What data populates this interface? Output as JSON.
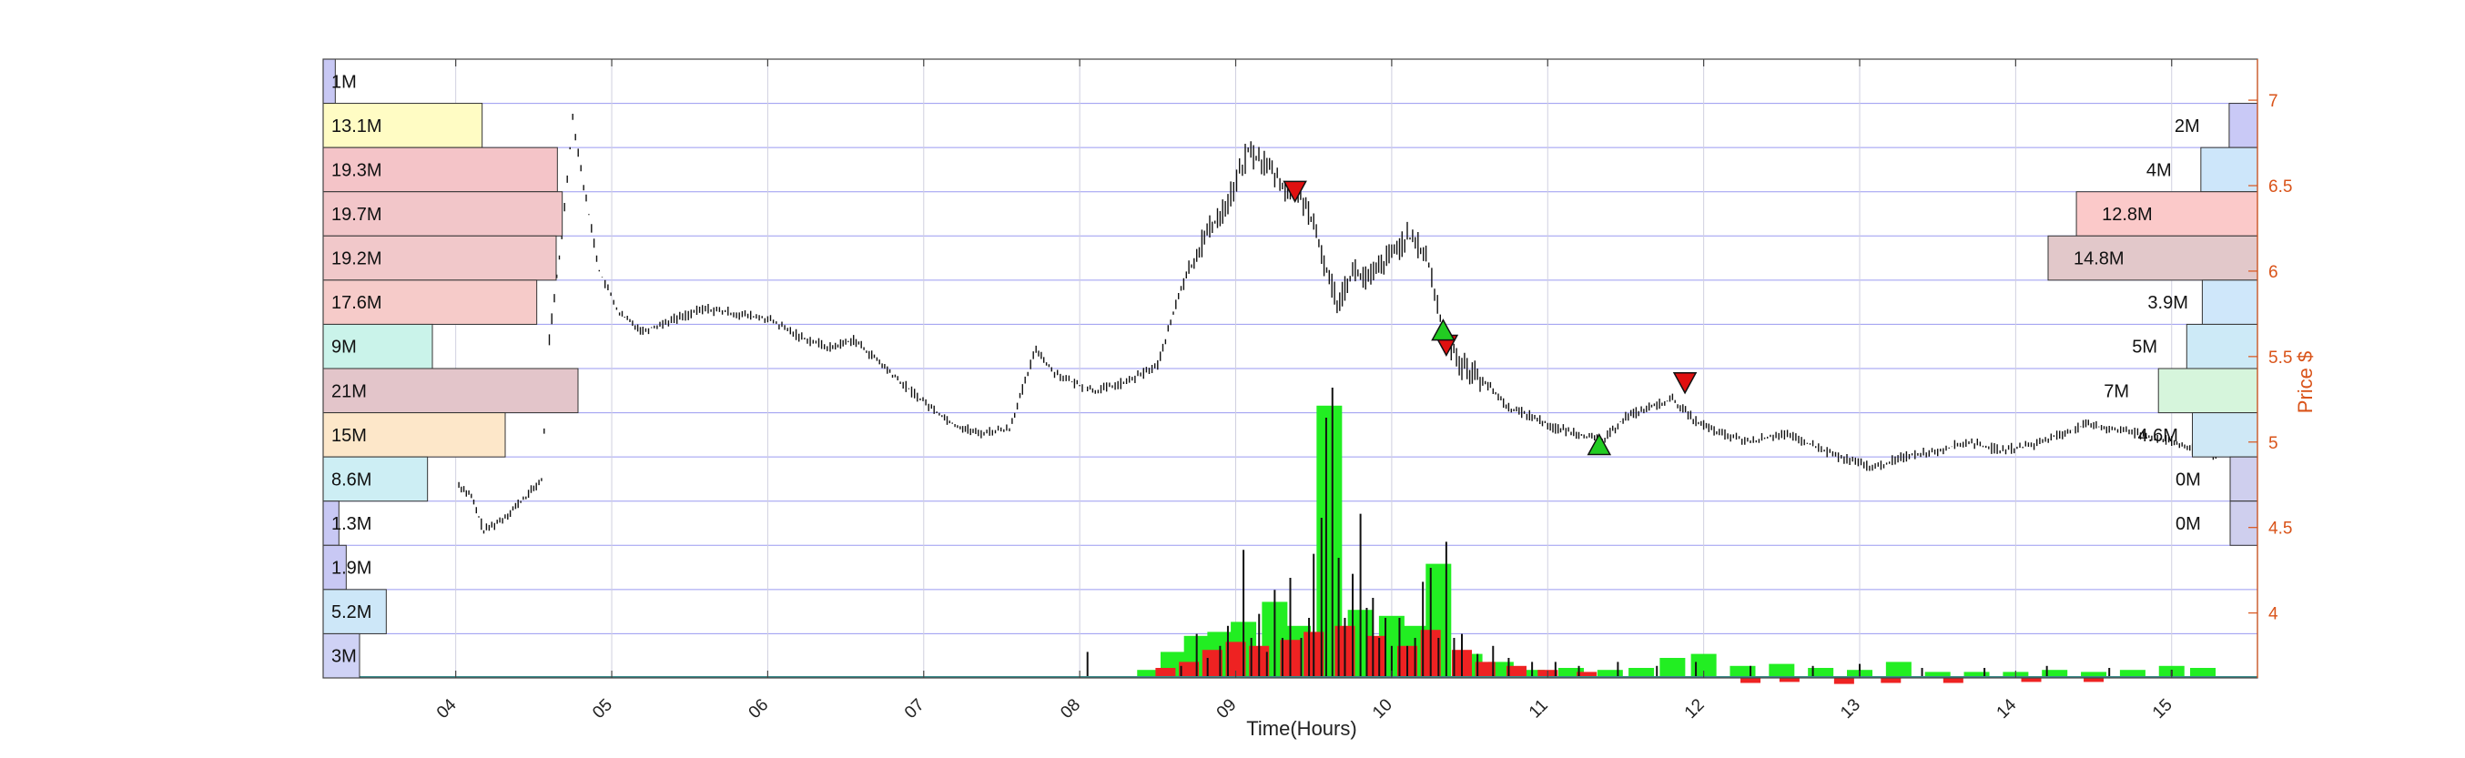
{
  "chart_data": {
    "type": "candlestick_volume_profile",
    "xlabel": "Time(Hours)",
    "ylabel_right": "Price $",
    "x_tick_labels": [
      "04",
      "05",
      "06",
      "07",
      "08",
      "09",
      "10",
      "11",
      "12",
      "13",
      "14",
      "15"
    ],
    "x_range_hours": [
      3.15,
      15.55
    ],
    "y_right_ticks": [
      4,
      4.5,
      5,
      5.5,
      6,
      6.5,
      7
    ],
    "y_right_range": [
      3.62,
      7.24
    ],
    "grid": true,
    "price_path": [
      [
        3.98,
        5.15
      ],
      [
        4.02,
        4.75
      ],
      [
        4.1,
        4.68
      ],
      [
        4.18,
        4.48
      ],
      [
        4.3,
        4.55
      ],
      [
        4.45,
        4.68
      ],
      [
        4.55,
        4.78
      ],
      [
        4.6,
        5.6
      ],
      [
        4.68,
        6.2
      ],
      [
        4.75,
        6.9
      ],
      [
        4.82,
        6.5
      ],
      [
        4.92,
        6.0
      ],
      [
        5.05,
        5.75
      ],
      [
        5.2,
        5.65
      ],
      [
        5.4,
        5.72
      ],
      [
        5.6,
        5.78
      ],
      [
        5.8,
        5.75
      ],
      [
        6.0,
        5.72
      ],
      [
        6.2,
        5.62
      ],
      [
        6.4,
        5.55
      ],
      [
        6.55,
        5.6
      ],
      [
        6.7,
        5.48
      ],
      [
        6.85,
        5.35
      ],
      [
        7.05,
        5.2
      ],
      [
        7.2,
        5.1
      ],
      [
        7.35,
        5.05
      ],
      [
        7.55,
        5.08
      ],
      [
        7.65,
        5.35
      ],
      [
        7.72,
        5.55
      ],
      [
        7.82,
        5.42
      ],
      [
        7.95,
        5.35
      ],
      [
        8.1,
        5.3
      ],
      [
        8.3,
        5.35
      ],
      [
        8.5,
        5.45
      ],
      [
        8.65,
        5.9
      ],
      [
        8.8,
        6.2
      ],
      [
        8.95,
        6.4
      ],
      [
        9.08,
        6.7
      ],
      [
        9.2,
        6.62
      ],
      [
        9.35,
        6.45
      ],
      [
        9.45,
        6.4
      ],
      [
        9.55,
        6.1
      ],
      [
        9.65,
        5.82
      ],
      [
        9.75,
        6.0
      ],
      [
        9.85,
        5.95
      ],
      [
        10.0,
        6.1
      ],
      [
        10.1,
        6.2
      ],
      [
        10.22,
        6.1
      ],
      [
        10.33,
        5.65
      ],
      [
        10.45,
        5.45
      ],
      [
        10.6,
        5.35
      ],
      [
        10.75,
        5.2
      ],
      [
        10.9,
        5.15
      ],
      [
        11.05,
        5.08
      ],
      [
        11.2,
        5.05
      ],
      [
        11.35,
        5.0
      ],
      [
        11.5,
        5.15
      ],
      [
        11.65,
        5.2
      ],
      [
        11.8,
        5.25
      ],
      [
        11.95,
        5.12
      ],
      [
        12.1,
        5.05
      ],
      [
        12.3,
        5.0
      ],
      [
        12.5,
        5.05
      ],
      [
        12.7,
        4.98
      ],
      [
        12.9,
        4.9
      ],
      [
        13.1,
        4.85
      ],
      [
        13.3,
        4.92
      ],
      [
        13.5,
        4.95
      ],
      [
        13.7,
        5.0
      ],
      [
        13.9,
        4.95
      ],
      [
        14.1,
        4.98
      ],
      [
        14.3,
        5.05
      ],
      [
        14.45,
        5.1
      ],
      [
        14.6,
        5.08
      ],
      [
        14.8,
        5.05
      ],
      [
        15.0,
        5.0
      ],
      [
        15.15,
        4.95
      ],
      [
        15.3,
        4.92
      ]
    ],
    "sell_markers": [
      [
        9.38,
        6.45
      ],
      [
        10.35,
        5.55
      ],
      [
        11.88,
        5.33
      ]
    ],
    "buy_markers": [
      [
        10.33,
        5.65
      ],
      [
        11.33,
        4.98
      ]
    ],
    "volume_profile_left": [
      {
        "label": "1M",
        "value": 1
      },
      {
        "label": "13.1M",
        "value": 13.1
      },
      {
        "label": "19.3M",
        "value": 19.3
      },
      {
        "label": "19.7M",
        "value": 19.7
      },
      {
        "label": "19.2M",
        "value": 19.2
      },
      {
        "label": "17.6M",
        "value": 17.6
      },
      {
        "label": "9M",
        "value": 9
      },
      {
        "label": "21M",
        "value": 21
      },
      {
        "label": "15M",
        "value": 15
      },
      {
        "label": "8.6M",
        "value": 8.6
      },
      {
        "label": "1.3M",
        "value": 1.3
      },
      {
        "label": "1.9M",
        "value": 1.9
      },
      {
        "label": "5.2M",
        "value": 5.2
      },
      {
        "label": "3M",
        "value": 3
      }
    ],
    "volume_profile_right": [
      {
        "label": "",
        "value": 0
      },
      {
        "label": "2M",
        "value": 2
      },
      {
        "label": "4M",
        "value": 4
      },
      {
        "label": "12.8M",
        "value": 12.8
      },
      {
        "label": "14.8M",
        "value": 14.8
      },
      {
        "label": "3.9M",
        "value": 3.9
      },
      {
        "label": "5M",
        "value": 5
      },
      {
        "label": "7M",
        "value": 7
      },
      {
        "label": "4.6M",
        "value": 4.6
      },
      {
        "label": "0M",
        "value": 0
      },
      {
        "label": "0M",
        "value": 0
      },
      {
        "label": "",
        "value": 0
      },
      {
        "label": "",
        "value": 0
      },
      {
        "label": "",
        "value": 0
      }
    ],
    "volume_bars_green": [
      [
        8.45,
        0.4
      ],
      [
        8.6,
        1.3
      ],
      [
        8.75,
        2.1
      ],
      [
        8.9,
        2.3
      ],
      [
        9.05,
        2.8
      ],
      [
        9.25,
        3.8
      ],
      [
        9.4,
        2.6
      ],
      [
        9.6,
        13.6
      ],
      [
        9.8,
        3.4
      ],
      [
        10.0,
        3.1
      ],
      [
        10.15,
        2.6
      ],
      [
        10.3,
        5.7
      ],
      [
        10.5,
        1.2
      ],
      [
        10.7,
        0.8
      ],
      [
        10.9,
        0.4
      ],
      [
        11.15,
        0.5
      ],
      [
        11.4,
        0.4
      ],
      [
        11.6,
        0.5
      ],
      [
        11.8,
        1.0
      ],
      [
        12.0,
        1.2
      ],
      [
        12.25,
        0.6
      ],
      [
        12.5,
        0.7
      ],
      [
        12.75,
        0.5
      ],
      [
        13.0,
        0.4
      ],
      [
        13.25,
        0.8
      ],
      [
        13.5,
        0.3
      ],
      [
        13.75,
        0.3
      ],
      [
        14.0,
        0.3
      ],
      [
        14.25,
        0.4
      ],
      [
        14.5,
        0.3
      ],
      [
        14.75,
        0.4
      ],
      [
        15.0,
        0.6
      ],
      [
        15.2,
        0.5
      ]
    ],
    "volume_bars_red": [
      [
        8.55,
        0.5
      ],
      [
        8.7,
        0.8
      ],
      [
        8.85,
        1.4
      ],
      [
        9.0,
        1.8
      ],
      [
        9.15,
        1.6
      ],
      [
        9.35,
        1.9
      ],
      [
        9.5,
        2.3
      ],
      [
        9.7,
        2.6
      ],
      [
        9.9,
        2.1
      ],
      [
        10.1,
        1.6
      ],
      [
        10.25,
        2.4
      ],
      [
        10.45,
        1.4
      ],
      [
        10.6,
        0.8
      ],
      [
        10.8,
        0.6
      ],
      [
        11.0,
        0.4
      ],
      [
        11.25,
        0.3
      ],
      [
        12.3,
        -0.25
      ],
      [
        12.55,
        -0.2
      ],
      [
        12.9,
        -0.3
      ],
      [
        13.2,
        -0.25
      ],
      [
        13.6,
        -0.25
      ],
      [
        14.1,
        -0.2
      ],
      [
        14.5,
        -0.2
      ]
    ],
    "volume_spikes": [
      [
        8.05,
        1.3
      ],
      [
        8.65,
        0.6
      ],
      [
        8.75,
        2.2
      ],
      [
        8.82,
        1.0
      ],
      [
        8.9,
        1.6
      ],
      [
        8.95,
        2.6
      ],
      [
        9.05,
        6.4
      ],
      [
        9.1,
        2.0
      ],
      [
        9.15,
        3.2
      ],
      [
        9.2,
        1.3
      ],
      [
        9.25,
        4.4
      ],
      [
        9.3,
        2.0
      ],
      [
        9.35,
        5.0
      ],
      [
        9.42,
        2.0
      ],
      [
        9.47,
        3.0
      ],
      [
        9.5,
        6.2
      ],
      [
        9.55,
        8.0
      ],
      [
        9.58,
        13.0
      ],
      [
        9.62,
        14.5
      ],
      [
        9.66,
        6.0
      ],
      [
        9.7,
        3.0
      ],
      [
        9.75,
        5.2
      ],
      [
        9.8,
        8.2
      ],
      [
        9.84,
        3.5
      ],
      [
        9.88,
        4.0
      ],
      [
        9.92,
        2.0
      ],
      [
        9.96,
        3.0
      ],
      [
        10.0,
        1.6
      ],
      [
        10.05,
        3.0
      ],
      [
        10.1,
        1.6
      ],
      [
        10.15,
        2.0
      ],
      [
        10.2,
        4.8
      ],
      [
        10.25,
        5.5
      ],
      [
        10.3,
        2.0
      ],
      [
        10.35,
        6.8
      ],
      [
        10.4,
        2.0
      ],
      [
        10.45,
        2.2
      ],
      [
        10.55,
        1.2
      ],
      [
        10.65,
        1.6
      ],
      [
        10.75,
        1.0
      ],
      [
        10.9,
        0.8
      ],
      [
        11.05,
        0.8
      ],
      [
        11.2,
        0.6
      ],
      [
        11.45,
        0.8
      ],
      [
        11.7,
        0.6
      ],
      [
        11.95,
        0.8
      ],
      [
        12.3,
        0.6
      ],
      [
        12.7,
        0.6
      ],
      [
        13.0,
        0.7
      ],
      [
        13.4,
        0.5
      ],
      [
        13.8,
        0.5
      ],
      [
        14.2,
        0.6
      ],
      [
        14.6,
        0.5
      ],
      [
        15.0,
        0.4
      ]
    ],
    "colors": {
      "up_marker": "#22cc22",
      "down_marker": "#e01010",
      "volume_green": "#22ee22",
      "volume_red": "#ee2222",
      "price_line": "#111111",
      "right_axis": "#d95319",
      "grid_h": "#9a9af0",
      "grid_v": "#d0d0e0"
    }
  }
}
